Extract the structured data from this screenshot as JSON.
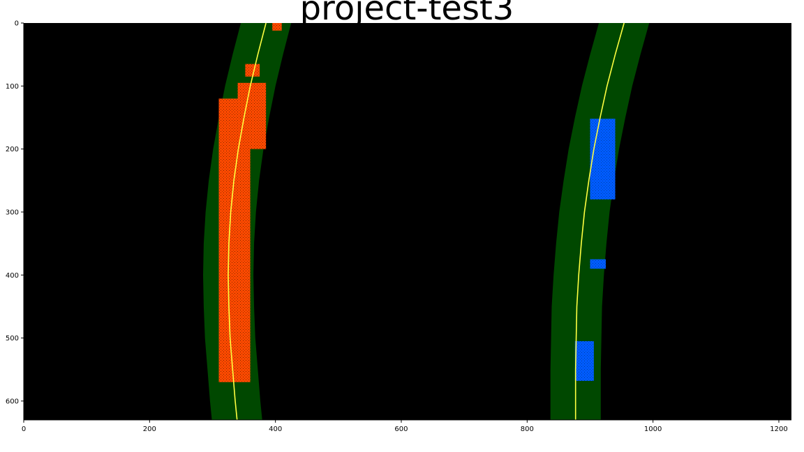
{
  "chart_data": {
    "type": "image",
    "title": "project-test3",
    "xlim": [
      0,
      1220
    ],
    "ylim": [
      630,
      0
    ],
    "x_ticks": [
      0,
      200,
      400,
      600,
      800,
      1000,
      1200
    ],
    "y_ticks": [
      0,
      100,
      200,
      300,
      400,
      500,
      600
    ],
    "grid": false,
    "colors": {
      "background": "#000000",
      "search_band": "#004800",
      "left_lane_pixels": "#ff4a00",
      "right_lane_pixels": "#005cff",
      "fit_line": "#ffff40"
    },
    "search_margin": 40,
    "left_fit": [
      {
        "x": 385,
        "y": 0
      },
      {
        "x": 372,
        "y": 50
      },
      {
        "x": 360,
        "y": 100
      },
      {
        "x": 350,
        "y": 150
      },
      {
        "x": 341,
        "y": 200
      },
      {
        "x": 334,
        "y": 250
      },
      {
        "x": 329,
        "y": 300
      },
      {
        "x": 326,
        "y": 350
      },
      {
        "x": 325,
        "y": 400
      },
      {
        "x": 326,
        "y": 450
      },
      {
        "x": 328,
        "y": 500
      },
      {
        "x": 332,
        "y": 550
      },
      {
        "x": 336,
        "y": 600
      },
      {
        "x": 339,
        "y": 630
      }
    ],
    "right_fit": [
      {
        "x": 954,
        "y": 0
      },
      {
        "x": 940,
        "y": 50
      },
      {
        "x": 927,
        "y": 100
      },
      {
        "x": 916,
        "y": 150
      },
      {
        "x": 906,
        "y": 200
      },
      {
        "x": 898,
        "y": 250
      },
      {
        "x": 891,
        "y": 300
      },
      {
        "x": 886,
        "y": 350
      },
      {
        "x": 882,
        "y": 400
      },
      {
        "x": 879,
        "y": 450
      },
      {
        "x": 878,
        "y": 500
      },
      {
        "x": 877,
        "y": 550
      },
      {
        "x": 877,
        "y": 600
      },
      {
        "x": 877,
        "y": 630
      }
    ],
    "left_lane_blobs": [
      {
        "x": [
          310,
          360
        ],
        "y": [
          120,
          570
        ]
      },
      {
        "x": [
          340,
          385
        ],
        "y": [
          95,
          200
        ]
      },
      {
        "x": [
          352,
          375
        ],
        "y": [
          65,
          85
        ]
      },
      {
        "x": [
          395,
          410
        ],
        "y": [
          0,
          12
        ]
      }
    ],
    "right_lane_blobs": [
      {
        "x": [
          900,
          940
        ],
        "y": [
          152,
          280
        ]
      },
      {
        "x": [
          900,
          925
        ],
        "y": [
          375,
          390
        ]
      },
      {
        "x": [
          876,
          906
        ],
        "y": [
          505,
          568
        ]
      }
    ]
  }
}
